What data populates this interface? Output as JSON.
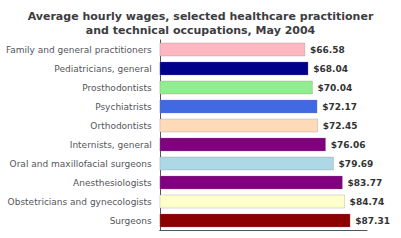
{
  "chart_data": {
    "type": "bar",
    "orientation": "horizontal",
    "title": "Average hourly wages, selected healthcare practitioner\nand technical occupations, May 2004",
    "categories": [
      "Family and general practitioners",
      "Pediatricians, general",
      "Prosthodontists",
      "Psychiatrists",
      "Orthodontists",
      "Internists, general",
      "Oral and maxillofacial surgeons",
      "Anesthesiologists",
      "Obstetricians and gynecologists",
      "Surgeons"
    ],
    "values": [
      66.58,
      68.04,
      70.04,
      72.17,
      72.45,
      76.06,
      79.69,
      83.77,
      84.74,
      87.31
    ],
    "value_labels": [
      "$66.58",
      "$68.04",
      "$70.04",
      "$72.17",
      "$72.45",
      "$76.06",
      "$79.69",
      "$83.77",
      "$84.74",
      "$87.31"
    ],
    "data_labels": true,
    "colors": [
      "#FFB6C1",
      "#00008B",
      "#90EE90",
      "#4169E1",
      "#FFDAB9",
      "#800080",
      "#ADD8E6",
      "#800080",
      "#FFFFCC",
      "#8B0000"
    ],
    "xlim": [
      0,
      95
    ],
    "tick_labels": "y",
    "grid": false
  }
}
